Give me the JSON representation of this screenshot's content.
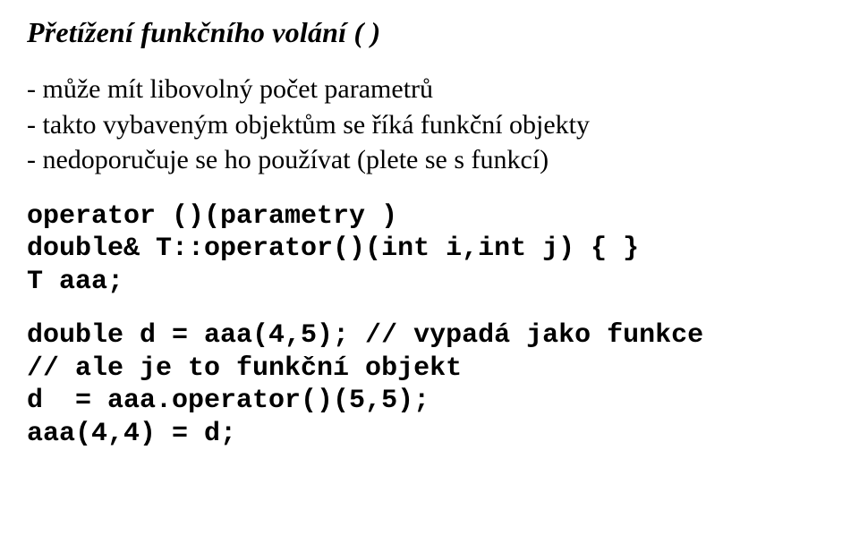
{
  "title": "Přetížení funkčního volání ( )",
  "bullets": [
    "- může mít libovolný počet parametrů",
    "- takto vybaveným objektům se říká funkční objekty",
    "- nedoporučuje se ho používat (plete se s funkcí)"
  ],
  "code_block1": [
    "operator ()(parametry )",
    "double& T::operator()(int i,int j) { }",
    "T aaa;"
  ],
  "code_block2": [
    "double d = aaa(4,5); // vypadá jako funkce",
    "// ale je to funkční objekt",
    "d  = aaa.operator()(5,5);",
    "aaa(4,4) = d;"
  ]
}
